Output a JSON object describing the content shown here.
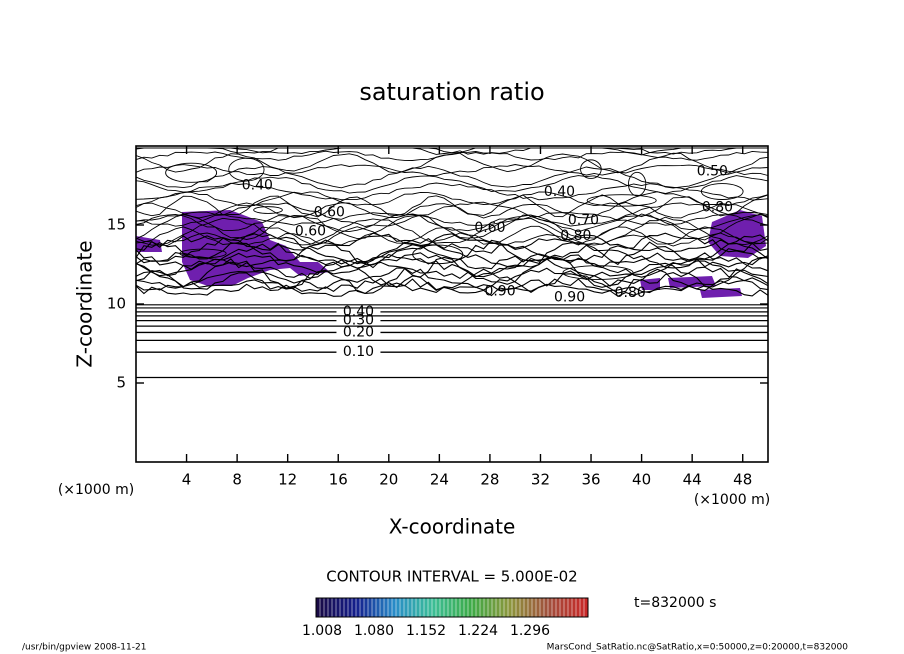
{
  "chart_data": {
    "type": "contour",
    "title": "saturation ratio",
    "xlabel": "X-coordinate",
    "ylabel": "Z-coordinate",
    "xunit": "(×1000 m)",
    "yunit": "(×1000 m)",
    "xlim": [
      0,
      50
    ],
    "ylim": [
      0,
      20
    ],
    "xticks": [
      4,
      8,
      12,
      16,
      20,
      24,
      28,
      32,
      36,
      40,
      44,
      48
    ],
    "yticks": [
      5,
      10,
      15
    ],
    "contour_interval": "CONTOUR INTERVAL = 5.000E-02",
    "contours": [
      {
        "level": 0.05,
        "z": 5.35
      },
      {
        "level": 0.1,
        "label": "0.10",
        "z": 6.95
      },
      {
        "level": 0.15,
        "z": 7.7
      },
      {
        "level": 0.2,
        "label": "0.20",
        "z": 8.2
      },
      {
        "level": 0.25,
        "z": 8.6
      },
      {
        "level": 0.3,
        "label": "0.30",
        "z": 8.95
      },
      {
        "level": 0.35,
        "z": 9.25
      },
      {
        "level": 0.4,
        "label": "0.40",
        "z": 9.5
      },
      {
        "level": 0.45,
        "z": 9.75
      },
      {
        "level": 0.5,
        "z": 9.95
      }
    ],
    "contour_labels": [
      {
        "text": "0.40",
        "x": 9.6,
        "z": 17.5
      },
      {
        "text": "0.40",
        "x": 33.5,
        "z": 17.1
      },
      {
        "text": "0.50",
        "x": 45.6,
        "z": 18.4
      },
      {
        "text": "0.60",
        "x": 15.3,
        "z": 15.8
      },
      {
        "text": "0.60",
        "x": 13.8,
        "z": 14.6
      },
      {
        "text": "0.80",
        "x": 46.0,
        "z": 16.1
      },
      {
        "text": "0.70",
        "x": 35.4,
        "z": 15.3
      },
      {
        "text": "0.60",
        "x": 28.0,
        "z": 14.8
      },
      {
        "text": "0.80",
        "x": 34.8,
        "z": 14.3
      },
      {
        "text": "0.90",
        "x": 28.8,
        "z": 10.8
      },
      {
        "text": "0.90",
        "x": 34.3,
        "z": 10.4
      },
      {
        "text": "0.80",
        "x": 39.1,
        "z": 10.7
      }
    ],
    "colorbar_ticks": [
      1.008,
      1.08,
      1.152,
      1.224,
      1.296
    ],
    "colorbar_tick_labels": [
      "1.008",
      "1.080",
      "1.152",
      "1.224",
      "1.296"
    ],
    "time_label": "t=832000 s",
    "footer_left": "/usr/bin/gpview  2008-11-21",
    "footer_right": "MarsCond_SatRatio.nc@SatRatio,x=0:50000,z=0:20000,t=832000"
  }
}
